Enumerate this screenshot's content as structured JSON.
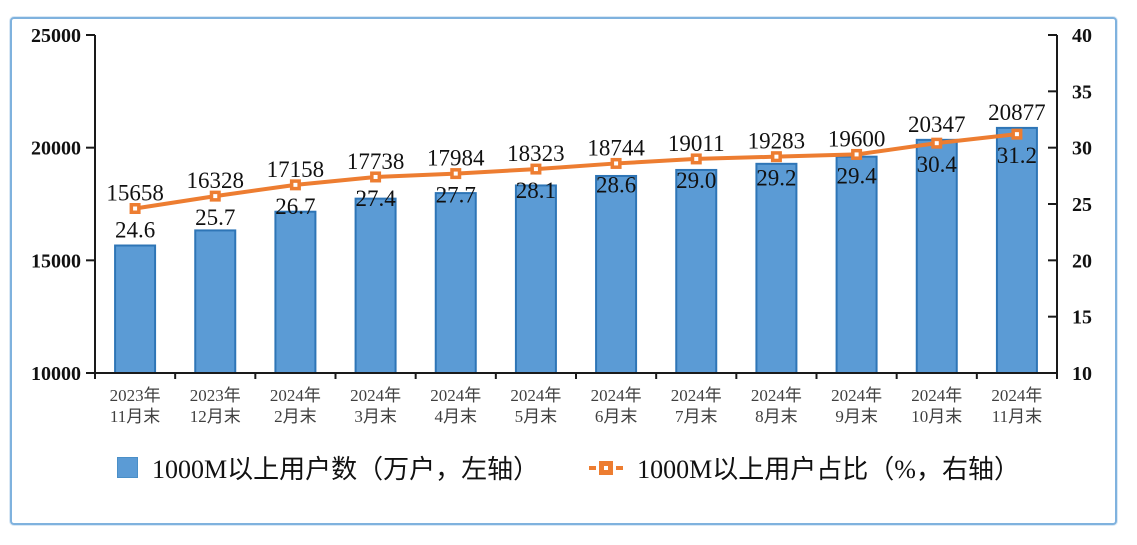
{
  "chart_data": {
    "type": "bar",
    "subtype": "bar-line-combo",
    "title": "",
    "grid": false,
    "legend_position": "bottom",
    "background_color": "#FFFFFF",
    "frame_border_color": "#7FB2DE",
    "axis_color": "#1a1a1a",
    "categories": [
      [
        "2023年",
        "11月末"
      ],
      [
        "2023年",
        "12月末"
      ],
      [
        "2024年",
        "2月末"
      ],
      [
        "2024年",
        "3月末"
      ],
      [
        "2024年",
        "4月末"
      ],
      [
        "2024年",
        "5月末"
      ],
      [
        "2024年",
        "6月末"
      ],
      [
        "2024年",
        "7月末"
      ],
      [
        "2024年",
        "8月末"
      ],
      [
        "2024年",
        "9月末"
      ],
      [
        "2024年",
        "10月末"
      ],
      [
        "2024年",
        "11月末"
      ]
    ],
    "series": [
      {
        "name": "1000M以上用户数（万户，左轴）",
        "type": "bar",
        "axis": "left",
        "color": "#5B9BD5",
        "border_color": "#2E75B6",
        "values": [
          15658,
          16328,
          17158,
          17738,
          17984,
          18323,
          18744,
          19011,
          19283,
          19600,
          20347,
          20877
        ],
        "labels": [
          "15658",
          "16328",
          "17158",
          "17738",
          "17984",
          "18323",
          "18744",
          "19011",
          "19283",
          "19600",
          "20347",
          "20877"
        ]
      },
      {
        "name": "1000M以上用户占比（%，右轴）",
        "type": "line",
        "axis": "right",
        "color": "#ED7D31",
        "marker": "square-open",
        "values": [
          24.6,
          25.7,
          26.7,
          27.4,
          27.7,
          28.1,
          28.6,
          29.0,
          29.2,
          29.4,
          30.4,
          31.2
        ],
        "labels": [
          "24.6",
          "25.7",
          "26.7",
          "27.4",
          "27.7",
          "28.1",
          "28.6",
          "29.0",
          "29.2",
          "29.4",
          "30.4",
          "31.2"
        ]
      }
    ],
    "left_axis": {
      "min": 10000,
      "max": 25000,
      "ticks": [
        10000,
        15000,
        20000,
        25000
      ],
      "tick_labels": [
        "10000",
        "15000",
        "20000",
        "25000"
      ]
    },
    "right_axis": {
      "min": 10,
      "max": 40,
      "ticks": [
        10,
        15,
        20,
        25,
        30,
        35,
        40
      ],
      "tick_labels": [
        "10",
        "15",
        "20",
        "25",
        "30",
        "35",
        "40"
      ]
    }
  }
}
